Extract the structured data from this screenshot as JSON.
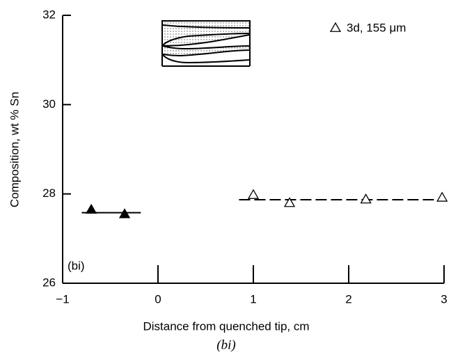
{
  "chart_data": {
    "type": "scatter",
    "xlabel": "Distance from quenched tip, cm",
    "ylabel": "Composition, wt % Sn",
    "xlim": [
      -1,
      3
    ],
    "ylim": [
      26,
      32
    ],
    "xticks": [
      {
        "value": -1,
        "label": "−1"
      },
      0,
      1,
      2,
      3
    ],
    "yticks": [
      26,
      28,
      30,
      32
    ],
    "series": [
      {
        "marker": "filled-triangle",
        "color": "#000000",
        "x": [
          -0.7,
          -0.35
        ],
        "values": [
          27.65,
          27.55
        ]
      },
      {
        "name": "3d, 155 μm",
        "marker": "open-triangle",
        "color": "#000000",
        "x": [
          1.0,
          1.38,
          2.18,
          2.98
        ],
        "values": [
          27.98,
          27.8,
          27.88,
          27.92
        ]
      }
    ],
    "lines": [
      {
        "x": [
          -0.8,
          -0.18
        ],
        "y": 27.58,
        "style": "solid"
      },
      {
        "x": [
          0.85,
          3.0
        ],
        "y": 27.87,
        "style": "dashed"
      }
    ],
    "annotation": "(bi)",
    "caption": "(bi)",
    "legend": "upper right"
  }
}
